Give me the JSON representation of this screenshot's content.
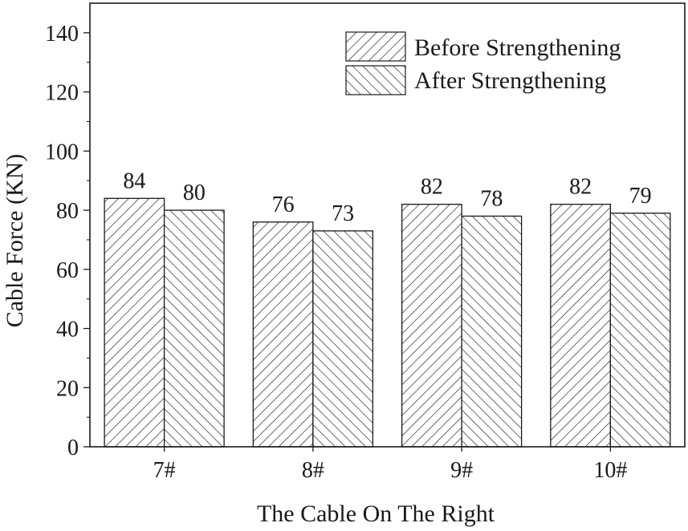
{
  "chart_data": {
    "type": "bar",
    "title": "",
    "xlabel": "The Cable On The Right",
    "ylabel": "Cable Force (KN)",
    "categories": [
      "7#",
      "8#",
      "9#",
      "10#"
    ],
    "series": [
      {
        "name": "Before Strengthening",
        "values": [
          84,
          76,
          82,
          82
        ],
        "pattern": "hatch-forward"
      },
      {
        "name": "After Strengthening",
        "values": [
          80,
          73,
          78,
          79
        ],
        "pattern": "hatch-backward"
      }
    ],
    "ylim": [
      0,
      150
    ],
    "yticks": [
      0,
      20,
      40,
      60,
      80,
      100,
      120,
      140
    ],
    "grid": false,
    "legend_position": "top-right",
    "colors": {
      "stroke": "#1a1a1a",
      "fill": "#ffffff"
    }
  }
}
